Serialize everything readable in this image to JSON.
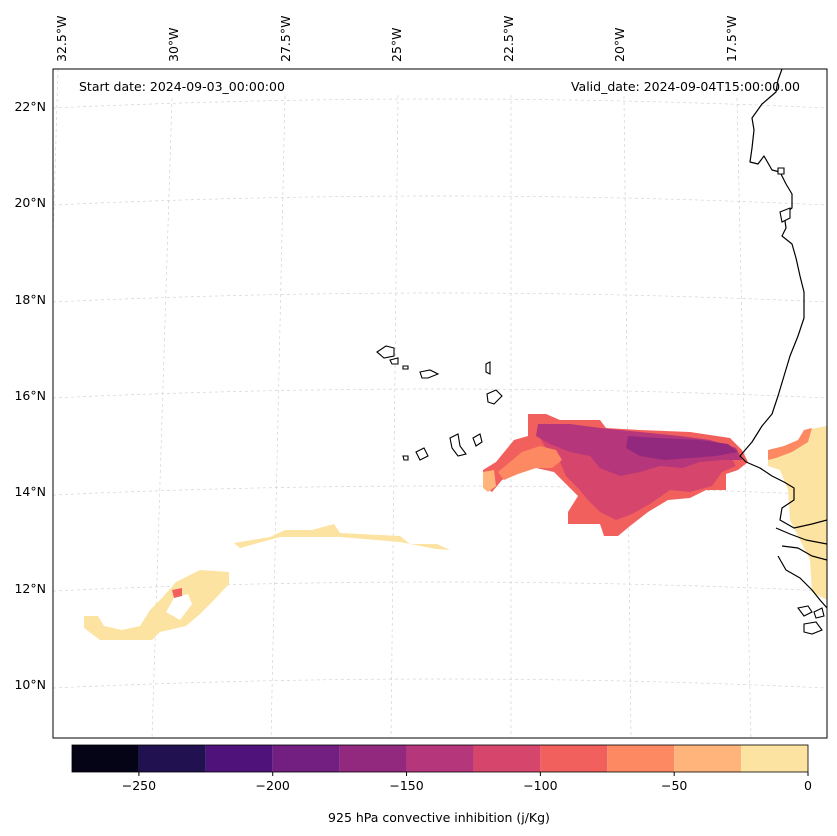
{
  "map": {
    "start_date_label": "Start date: 2024-09-03_00:00:00",
    "valid_date_label": "Valid_date: 2024-09-04T15:00:00.00",
    "variable_label": "925 hPa convective inhibition (j/Kg)",
    "longitude_labels": [
      "32.5°W",
      "30°W",
      "27.5°W",
      "25°W",
      "22.5°W",
      "20°W",
      "17.5°W"
    ],
    "latitude_labels": [
      "22°N",
      "20°N",
      "18°N",
      "16°N",
      "14°N",
      "12°N",
      "10°N"
    ]
  },
  "colorbar": {
    "ticks": [
      "−250",
      "−200",
      "−150",
      "−100",
      "−50",
      "0"
    ],
    "levels": [
      -275,
      -250,
      -225,
      -200,
      -175,
      -150,
      -125,
      -100,
      -75,
      -50,
      -25,
      0
    ],
    "colors": [
      "#050417",
      "#221150",
      "#4f127b",
      "#721f81",
      "#93297e",
      "#b5367a",
      "#d6456c",
      "#f1605d",
      "#fc8961",
      "#feb47b",
      "#fde3a1"
    ]
  }
}
